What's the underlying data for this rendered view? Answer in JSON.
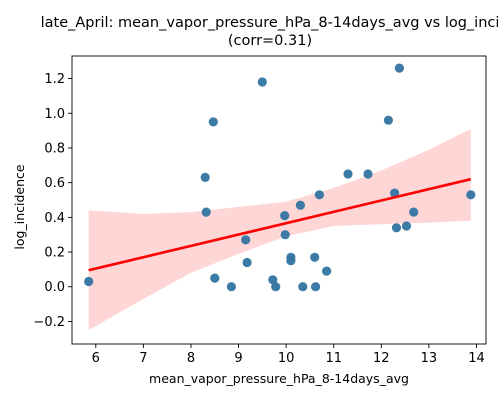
{
  "chart_data": {
    "type": "scatter",
    "title": "late_April: mean_vapor_pressure_hPa_8-14days_avg vs log_inci",
    "subtitle": "(corr=0.31)",
    "xlabel": "mean_vapor_pressure_hPa_8-14days_avg",
    "ylabel": "log_incidence",
    "xlim": [
      5.5,
      14.2
    ],
    "ylim": [
      -0.33,
      1.33
    ],
    "x_ticks": [
      6,
      7,
      8,
      9,
      10,
      11,
      12,
      13,
      14
    ],
    "y_ticks": [
      -0.2,
      0.0,
      0.2,
      0.4,
      0.6,
      0.8,
      1.0,
      1.2
    ],
    "x_tick_labels": [
      "6",
      "7",
      "8",
      "9",
      "10",
      "11",
      "12",
      "13",
      "14"
    ],
    "y_tick_labels": [
      "−0.2",
      "0.0",
      "0.2",
      "0.4",
      "0.6",
      "0.8",
      "1.0",
      "1.2"
    ],
    "grid": false,
    "points": [
      {
        "x": 5.85,
        "y": 0.03
      },
      {
        "x": 8.3,
        "y": 0.63
      },
      {
        "x": 8.32,
        "y": 0.43
      },
      {
        "x": 8.47,
        "y": 0.95
      },
      {
        "x": 8.5,
        "y": 0.05
      },
      {
        "x": 8.85,
        "y": 0.0
      },
      {
        "x": 9.15,
        "y": 0.27
      },
      {
        "x": 9.18,
        "y": 0.14
      },
      {
        "x": 9.5,
        "y": 1.18
      },
      {
        "x": 9.72,
        "y": 0.04
      },
      {
        "x": 9.78,
        "y": 0.0
      },
      {
        "x": 9.97,
        "y": 0.41
      },
      {
        "x": 9.98,
        "y": 0.3
      },
      {
        "x": 10.1,
        "y": 0.17
      },
      {
        "x": 10.1,
        "y": 0.15
      },
      {
        "x": 10.3,
        "y": 0.47
      },
      {
        "x": 10.35,
        "y": 0.0
      },
      {
        "x": 10.6,
        "y": 0.17
      },
      {
        "x": 10.62,
        "y": 0.0
      },
      {
        "x": 10.7,
        "y": 0.53
      },
      {
        "x": 10.85,
        "y": 0.09
      },
      {
        "x": 11.3,
        "y": 0.65
      },
      {
        "x": 11.72,
        "y": 0.65
      },
      {
        "x": 12.15,
        "y": 0.96
      },
      {
        "x": 12.28,
        "y": 0.54
      },
      {
        "x": 12.32,
        "y": 0.34
      },
      {
        "x": 12.38,
        "y": 1.26
      },
      {
        "x": 12.53,
        "y": 0.35
      },
      {
        "x": 12.68,
        "y": 0.43
      },
      {
        "x": 13.88,
        "y": 0.53
      }
    ],
    "regression_line": {
      "x": [
        5.85,
        13.88
      ],
      "y": [
        0.095,
        0.62
      ]
    },
    "confidence_band": {
      "x": [
        5.85,
        7.0,
        8.0,
        9.0,
        10.0,
        11.0,
        12.0,
        13.0,
        13.88
      ],
      "upper": [
        0.44,
        0.42,
        0.43,
        0.46,
        0.49,
        0.57,
        0.67,
        0.79,
        0.91
      ],
      "lower": [
        -0.25,
        -0.07,
        0.08,
        0.19,
        0.29,
        0.35,
        0.36,
        0.37,
        0.38
      ]
    },
    "colors": {
      "points": "#3274a1",
      "line": "#ff0000",
      "band": "#ffd6d6"
    }
  }
}
